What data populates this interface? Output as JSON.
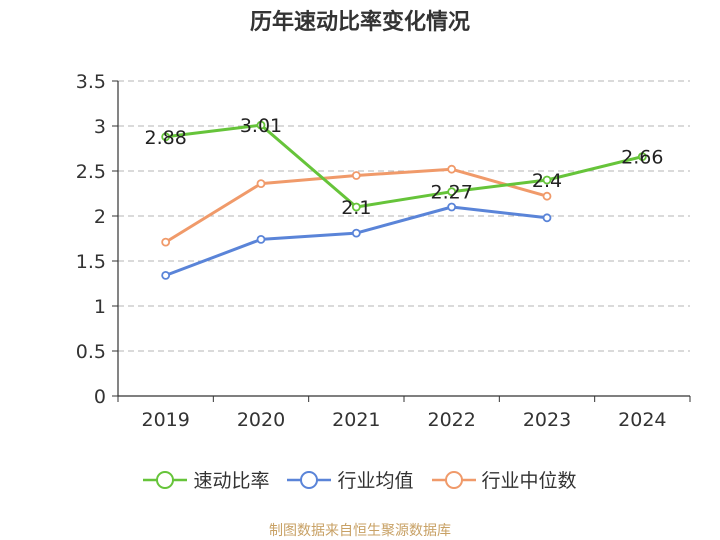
{
  "title": "历年速动比率变化情况",
  "source": "制图数据来自恒生聚源数据库",
  "chart_data": {
    "type": "line",
    "title": "历年速动比率变化情况",
    "categories": [
      "2019",
      "2020",
      "2021",
      "2022",
      "2023",
      "2024"
    ],
    "ylim": [
      0,
      3.5
    ],
    "yticks": [
      "0",
      "0.5",
      "1",
      "1.5",
      "2",
      "2.5",
      "3",
      "3.5"
    ],
    "grid": true,
    "legend_position": "bottom",
    "series": [
      {
        "name": "速动比率",
        "color": "#66c43a",
        "values": [
          2.88,
          3.01,
          2.1,
          2.27,
          2.4,
          2.66
        ],
        "labels": [
          "2.88",
          "3.01",
          "2.1",
          "2.27",
          "2.4",
          "2.66"
        ]
      },
      {
        "name": "行业均值",
        "color": "#5a84d8",
        "values": [
          1.34,
          1.74,
          1.81,
          2.1,
          1.98,
          null
        ]
      },
      {
        "name": "行业中位数",
        "color": "#f09a6a",
        "values": [
          1.71,
          2.36,
          2.45,
          2.52,
          2.22,
          null
        ]
      }
    ]
  }
}
